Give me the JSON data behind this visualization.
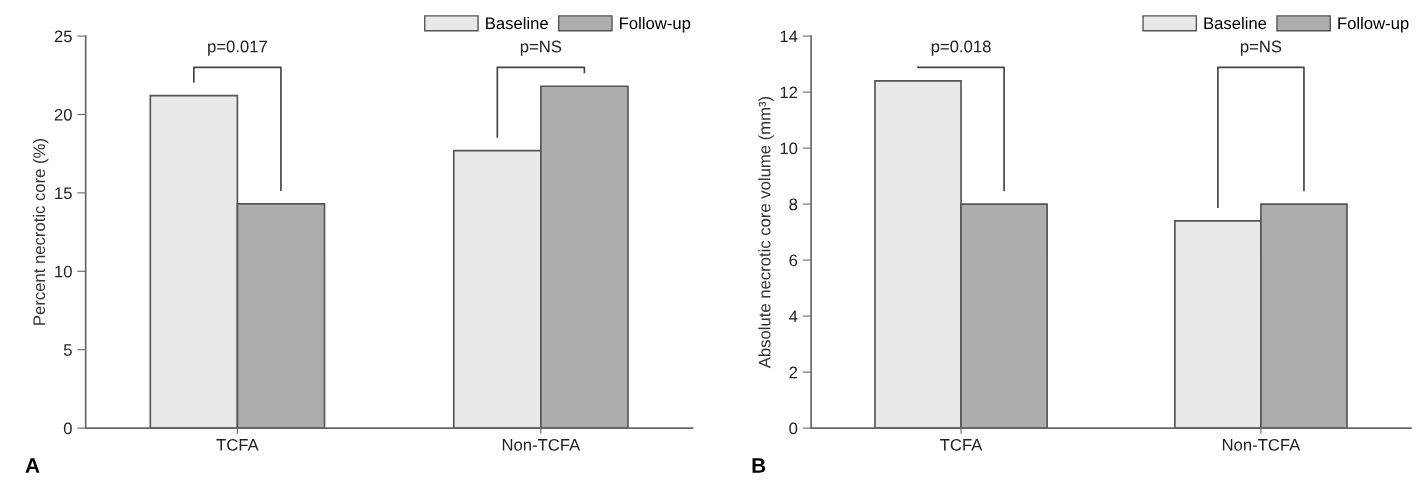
{
  "chart_data": [
    {
      "type": "bar",
      "ylabel": "Percent necrotic core (%)",
      "categories": [
        "TCFA",
        "Non-TCFA"
      ],
      "series": [
        {
          "name": "Baseline",
          "color": "#e8e8e8",
          "values": [
            21.2,
            17.7
          ]
        },
        {
          "name": "Follow-up",
          "color": "#acadae",
          "values": [
            14.3,
            21.8
          ]
        }
      ],
      "ylim": [
        0,
        25
      ],
      "yticks": [
        0,
        5,
        10,
        15,
        20,
        25
      ],
      "grid": false,
      "legend": "top right",
      "annotations": [
        "p=0.017",
        "p=NS",
        "A"
      ]
    },
    {
      "type": "bar",
      "ylabel": "Absolute necrotic core volume (mm³)",
      "categories": [
        "TCFA",
        "Non-TCFA"
      ],
      "series": [
        {
          "name": "Baseline",
          "color": "#e8e8e8",
          "values": [
            12.4,
            7.4
          ]
        },
        {
          "name": "Follow-up",
          "color": "#acadae",
          "values": [
            8.0,
            8.0
          ]
        }
      ],
      "ylim": [
        0,
        14
      ],
      "yticks": [
        0,
        2,
        4,
        6,
        8,
        10,
        12,
        14
      ],
      "grid": false,
      "legend": "top right",
      "annotations": [
        "p=0.018",
        "p=NS",
        "B"
      ]
    }
  ]
}
